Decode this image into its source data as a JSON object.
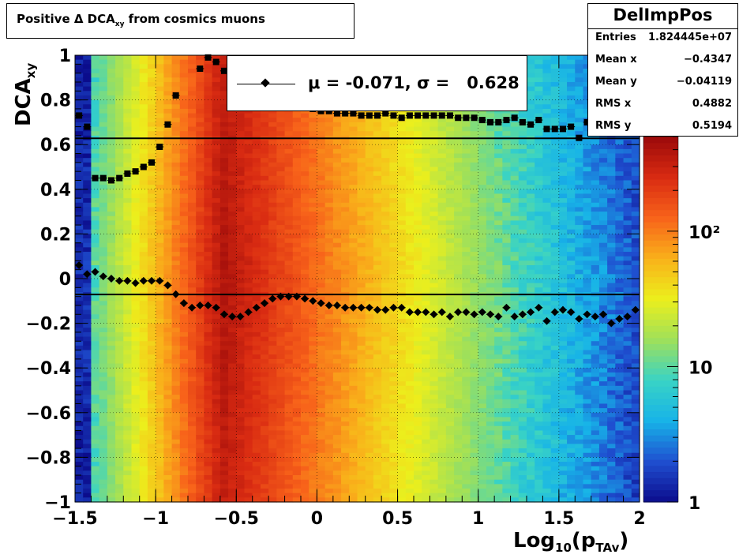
{
  "title": "Positive Δ DCA",
  "title_sub": "xy",
  "title_suffix": "from cosmics muons",
  "stats": {
    "name": "DelImpPos",
    "rows": [
      {
        "key": "Entries",
        "value": "1.824445e+07"
      },
      {
        "key": "Mean x",
        "value": "−0.4347"
      },
      {
        "key": "Mean y",
        "value": "−0.04119"
      },
      {
        "key": "RMS x",
        "value": "0.4882"
      },
      {
        "key": "RMS y",
        "value": "0.5194"
      }
    ]
  },
  "legend": {
    "text": "μ = -0.071, σ =   0.628"
  },
  "colors": {
    "palette": [
      "#0b0c8c",
      "#1f4fd0",
      "#17b3e8",
      "#39d3c5",
      "#9fe05a",
      "#ecef1c",
      "#f9b11a",
      "#f8631a",
      "#d92b12",
      "#9b0a0a"
    ],
    "axis": "#000000",
    "grid": "#000000"
  },
  "chart_data": {
    "type": "heatmap",
    "title": "Positive Δ DCA xy from cosmics muons",
    "xlabel": "Log10(pTAv)",
    "ylabel": "DCAxy",
    "xlim": [
      -1.5,
      2
    ],
    "ylim": [
      -1,
      1
    ],
    "grid": true,
    "log_z": true,
    "zlim": [
      1,
      500
    ],
    "x_ticks": [
      -1.5,
      -1,
      -0.5,
      0,
      0.5,
      1,
      1.5,
      2
    ],
    "x_tick_labels": [
      "−1.5",
      "−1",
      "−0.5",
      "0",
      "0.5",
      "1",
      "1.5",
      "2"
    ],
    "y_ticks": [
      -1,
      -0.8,
      -0.6,
      -0.4,
      -0.2,
      0,
      0.2,
      0.4,
      0.6,
      0.8,
      1
    ],
    "y_tick_labels": [
      "−1",
      "−0.8",
      "−0.6",
      "−0.4",
      "−0.2",
      "0",
      "0.2",
      "0.4",
      "0.6",
      "0.8",
      "1"
    ],
    "z_ticks": [
      1,
      10,
      100
    ],
    "z_tick_labels": [
      "1",
      "10",
      "10²"
    ],
    "horizontal_lines": [
      0.628,
      -0.071
    ],
    "series": [
      {
        "name": "mean",
        "marker": "diamond",
        "x": [
          -1.475,
          -1.425,
          -1.375,
          -1.325,
          -1.275,
          -1.225,
          -1.175,
          -1.125,
          -1.075,
          -1.025,
          -0.975,
          -0.925,
          -0.875,
          -0.825,
          -0.775,
          -0.725,
          -0.675,
          -0.625,
          -0.575,
          -0.525,
          -0.475,
          -0.425,
          -0.375,
          -0.325,
          -0.275,
          -0.225,
          -0.175,
          -0.125,
          -0.075,
          -0.025,
          0.025,
          0.075,
          0.125,
          0.175,
          0.225,
          0.275,
          0.325,
          0.375,
          0.425,
          0.475,
          0.525,
          0.575,
          0.625,
          0.675,
          0.725,
          0.775,
          0.825,
          0.875,
          0.925,
          0.975,
          1.025,
          1.075,
          1.125,
          1.175,
          1.225,
          1.275,
          1.325,
          1.375,
          1.425,
          1.475,
          1.525,
          1.575,
          1.625,
          1.675,
          1.725,
          1.775,
          1.825,
          1.875,
          1.925,
          1.975
        ],
        "y": [
          0.06,
          0.02,
          0.03,
          0.01,
          0.0,
          -0.01,
          -0.01,
          -0.02,
          -0.01,
          -0.01,
          -0.01,
          -0.03,
          -0.07,
          -0.11,
          -0.13,
          -0.12,
          -0.12,
          -0.13,
          -0.16,
          -0.17,
          -0.17,
          -0.15,
          -0.13,
          -0.11,
          -0.09,
          -0.08,
          -0.08,
          -0.08,
          -0.09,
          -0.1,
          -0.11,
          -0.12,
          -0.12,
          -0.13,
          -0.13,
          -0.13,
          -0.13,
          -0.14,
          -0.14,
          -0.13,
          -0.13,
          -0.15,
          -0.15,
          -0.15,
          -0.16,
          -0.15,
          -0.17,
          -0.15,
          -0.15,
          -0.16,
          -0.15,
          -0.16,
          -0.17,
          -0.13,
          -0.17,
          -0.16,
          -0.15,
          -0.13,
          -0.19,
          -0.15,
          -0.14,
          -0.15,
          -0.18,
          -0.16,
          -0.17,
          -0.16,
          -0.2,
          -0.18,
          -0.17,
          -0.14
        ]
      },
      {
        "name": "sigma",
        "marker": "square",
        "x": [
          -1.475,
          -1.425,
          -1.375,
          -1.325,
          -1.275,
          -1.225,
          -1.175,
          -1.125,
          -1.075,
          -1.025,
          -0.975,
          -0.925,
          -0.875,
          -0.725,
          -0.675,
          -0.625,
          -0.575,
          -0.525,
          -0.475,
          -0.425,
          -0.375,
          -0.325,
          -0.275,
          -0.225,
          -0.175,
          -0.125,
          -0.075,
          -0.025,
          0.025,
          0.075,
          0.125,
          0.175,
          0.225,
          0.275,
          0.325,
          0.375,
          0.425,
          0.475,
          0.525,
          0.575,
          0.625,
          0.675,
          0.725,
          0.775,
          0.825,
          0.875,
          0.925,
          0.975,
          1.025,
          1.075,
          1.125,
          1.175,
          1.225,
          1.275,
          1.325,
          1.375,
          1.425,
          1.475,
          1.525,
          1.575,
          1.625,
          1.675,
          1.725,
          1.775,
          1.825,
          1.875,
          1.925,
          1.975
        ],
        "y": [
          0.73,
          0.68,
          0.45,
          0.45,
          0.44,
          0.45,
          0.47,
          0.48,
          0.5,
          0.52,
          0.59,
          0.69,
          0.82,
          0.94,
          0.99,
          0.97,
          0.93,
          0.9,
          0.88,
          0.86,
          0.84,
          0.82,
          0.81,
          0.8,
          0.79,
          0.78,
          0.77,
          0.76,
          0.75,
          0.75,
          0.74,
          0.74,
          0.74,
          0.73,
          0.73,
          0.73,
          0.74,
          0.73,
          0.72,
          0.73,
          0.73,
          0.73,
          0.73,
          0.73,
          0.73,
          0.72,
          0.72,
          0.72,
          0.71,
          0.7,
          0.7,
          0.71,
          0.72,
          0.7,
          0.69,
          0.71,
          0.67,
          0.67,
          0.67,
          0.68,
          0.63,
          0.7,
          0.71,
          0.69,
          0.77,
          0.76,
          0.84,
          0.73
        ]
      }
    ]
  }
}
